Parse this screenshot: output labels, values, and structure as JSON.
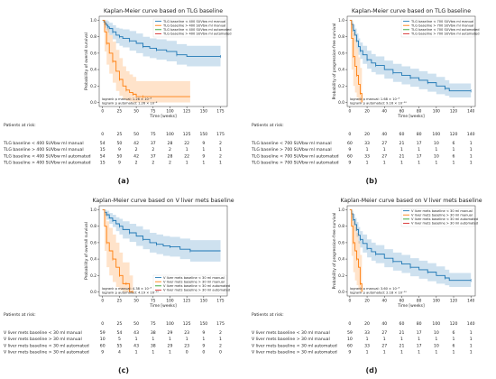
{
  "colors": {
    "blue": "#1f77b4",
    "orange": "#ff7f0e",
    "green": "#2ca02c",
    "red": "#d62728"
  },
  "risk_header": "Patients at risk:",
  "chart_data": [
    {
      "type": "line",
      "caption": "(a)",
      "title": "Kaplan-Meier curve based on TLG baseline",
      "xlabel": "Time [weeks]",
      "ylabel": "Probability of overall survival",
      "xticks": [
        0,
        25,
        50,
        75,
        100,
        125,
        150,
        175
      ],
      "yticks": [
        0.0,
        0.2,
        0.4,
        0.6,
        0.8,
        1.0
      ],
      "xlim": [
        -5,
        185
      ],
      "ylim": [
        -0.05,
        1.05
      ],
      "grid": false,
      "legend": "top-right",
      "pvalues": [
        "logrank p manual: 1.26 × 10⁻⁸",
        "logrank p automated: 1.26 × 10⁻⁸"
      ],
      "series": [
        {
          "name": "TLG baseline < 400 SUVbw ml manual",
          "color": "#1f77b4",
          "x": [
            0,
            2,
            4,
            6,
            8,
            10,
            15,
            20,
            25,
            30,
            40,
            50,
            60,
            70,
            80,
            95,
            110,
            125,
            175
          ],
          "y": [
            1.0,
            0.98,
            0.96,
            0.94,
            0.92,
            0.9,
            0.86,
            0.82,
            0.8,
            0.78,
            0.75,
            0.72,
            0.68,
            0.66,
            0.64,
            0.62,
            0.58,
            0.56,
            0.56
          ],
          "ci_low": [
            1.0,
            0.95,
            0.91,
            0.88,
            0.85,
            0.82,
            0.77,
            0.72,
            0.69,
            0.67,
            0.63,
            0.6,
            0.56,
            0.54,
            0.52,
            0.5,
            0.46,
            0.44,
            0.44
          ],
          "ci_high": [
            1.0,
            1.0,
            1.0,
            1.0,
            0.99,
            0.97,
            0.94,
            0.91,
            0.9,
            0.89,
            0.87,
            0.84,
            0.8,
            0.78,
            0.77,
            0.75,
            0.71,
            0.69,
            0.69
          ]
        },
        {
          "name": "TLG baseline > 400 SUVbw ml manual",
          "color": "#ff7f0e",
          "x": [
            0,
            3,
            6,
            10,
            15,
            20,
            25,
            30,
            35,
            40,
            45,
            50,
            60,
            130
          ],
          "y": [
            1.0,
            0.86,
            0.72,
            0.6,
            0.5,
            0.38,
            0.28,
            0.2,
            0.15,
            0.12,
            0.1,
            0.07,
            0.07,
            0.07
          ],
          "ci_low": [
            1.0,
            0.62,
            0.46,
            0.35,
            0.24,
            0.14,
            0.08,
            0.04,
            0.02,
            0.01,
            0.0,
            0.0,
            0.0,
            0.0
          ],
          "ci_high": [
            1.0,
            0.98,
            0.9,
            0.82,
            0.74,
            0.64,
            0.54,
            0.44,
            0.38,
            0.34,
            0.31,
            0.26,
            0.26,
            0.26
          ]
        },
        {
          "name": "TLG baseline < 400 SUVbw ml automated",
          "color": "#2ca02c"
        },
        {
          "name": "TLG baseline > 400 SUVbw ml automated",
          "color": "#d62728"
        }
      ],
      "risk_table": {
        "times": [
          "0",
          "25",
          "50",
          "75",
          "100",
          "125",
          "150",
          "175"
        ],
        "rows": [
          {
            "label": "TLG baseline < 400 SUVbw ml manual",
            "counts": [
              "54",
              "50",
              "42",
              "37",
              "28",
              "22",
              "9",
              "2"
            ]
          },
          {
            "label": "TLG baseline > 400 SUVbw ml manual",
            "counts": [
              "15",
              "9",
              "2",
              "2",
              "2",
              "1",
              "1",
              "1"
            ]
          },
          {
            "label": "TLG baseline < 400 SUVbw ml automated",
            "counts": [
              "54",
              "50",
              "42",
              "37",
              "28",
              "22",
              "9",
              "2"
            ]
          },
          {
            "label": "TLG baseline > 400 SUVbw ml automated",
            "counts": [
              "15",
              "9",
              "2",
              "2",
              "2",
              "1",
              "1",
              "1"
            ]
          }
        ]
      }
    },
    {
      "type": "line",
      "caption": "(b)",
      "title": "Kaplan-Meier curve based on TLG baseline",
      "xlabel": "Time [weeks]",
      "ylabel": "Probability of progression-free survival",
      "xticks": [
        0,
        20,
        40,
        60,
        80,
        100,
        120,
        140
      ],
      "yticks": [
        0.0,
        0.2,
        0.4,
        0.6,
        0.8,
        1.0
      ],
      "xlim": [
        -3,
        145
      ],
      "ylim": [
        -0.05,
        1.05
      ],
      "grid": false,
      "legend": "top-right",
      "pvalues": [
        "logrank p manual: 1.68 × 10⁻⁸",
        "logrank p automated: 9.16 × 10⁻¹⁰"
      ],
      "series": [
        {
          "name": "TLG baseline < 700 SUVbw ml manual",
          "color": "#1f77b4",
          "x": [
            0,
            2,
            4,
            6,
            8,
            10,
            12,
            15,
            20,
            25,
            30,
            40,
            50,
            60,
            70,
            80,
            90,
            100,
            110,
            115,
            140
          ],
          "y": [
            1.0,
            0.95,
            0.88,
            0.82,
            0.75,
            0.68,
            0.63,
            0.58,
            0.52,
            0.48,
            0.45,
            0.4,
            0.36,
            0.33,
            0.3,
            0.27,
            0.24,
            0.2,
            0.17,
            0.14,
            0.14
          ],
          "ci_low": [
            1.0,
            0.9,
            0.81,
            0.74,
            0.66,
            0.58,
            0.53,
            0.47,
            0.41,
            0.37,
            0.34,
            0.29,
            0.25,
            0.22,
            0.19,
            0.16,
            0.13,
            0.1,
            0.08,
            0.06,
            0.06
          ],
          "ci_high": [
            1.0,
            0.99,
            0.95,
            0.9,
            0.84,
            0.78,
            0.73,
            0.69,
            0.63,
            0.59,
            0.56,
            0.51,
            0.47,
            0.44,
            0.41,
            0.38,
            0.35,
            0.31,
            0.27,
            0.23,
            0.23
          ]
        },
        {
          "name": "TLG baseline > 700 SUVbw ml manual",
          "color": "#ff7f0e",
          "x": [
            0,
            2,
            4,
            6,
            8,
            10,
            12,
            14
          ],
          "y": [
            1.0,
            0.78,
            0.56,
            0.44,
            0.33,
            0.22,
            0.11,
            0.0
          ],
          "ci_low": [
            1.0,
            0.4,
            0.2,
            0.12,
            0.06,
            0.02,
            0.0,
            0.0
          ],
          "ci_high": [
            1.0,
            0.96,
            0.85,
            0.76,
            0.66,
            0.55,
            0.42,
            0.42
          ]
        },
        {
          "name": "TLG baseline < 700 SUVbw ml automated",
          "color": "#2ca02c"
        },
        {
          "name": "TLG baseline > 700 SUVbw ml automated",
          "color": "#d62728"
        }
      ],
      "risk_table": {
        "times": [
          "0",
          "20",
          "40",
          "60",
          "80",
          "100",
          "120",
          "140"
        ],
        "rows": [
          {
            "label": "TLG baseline < 700 SUVbw ml manual",
            "counts": [
              "60",
              "33",
              "27",
              "21",
              "17",
              "10",
              "6",
              "1"
            ]
          },
          {
            "label": "TLG baseline > 700 SUVbw ml manual",
            "counts": [
              "9",
              "1",
              "1",
              "1",
              "1",
              "1",
              "1",
              "1"
            ]
          },
          {
            "label": "TLG baseline < 700 SUVbw ml automated",
            "counts": [
              "60",
              "33",
              "27",
              "21",
              "17",
              "10",
              "6",
              "1"
            ]
          },
          {
            "label": "TLG baseline > 700 SUVbw ml automated",
            "counts": [
              "9",
              "1",
              "1",
              "1",
              "1",
              "1",
              "1",
              "1"
            ]
          }
        ]
      }
    },
    {
      "type": "line",
      "caption": "(c)",
      "title": "Kaplan-Meier curve based on V liver mets baseline",
      "xlabel": "Time [weeks]",
      "ylabel": "Probability of overall survival",
      "xticks": [
        0,
        25,
        50,
        75,
        100,
        125,
        150,
        175
      ],
      "yticks": [
        0.0,
        0.2,
        0.4,
        0.6,
        0.8,
        1.0
      ],
      "xlim": [
        -5,
        185
      ],
      "ylim": [
        -0.05,
        1.05
      ],
      "grid": false,
      "legend": "bottom-right",
      "pvalues": [
        "logrank p manual: 4.38 × 10⁻⁸",
        "logrank p automated: 4.19 × 10⁻¹²"
      ],
      "series": [
        {
          "name": "V liver mets baseline < 30 ml manual",
          "color": "#1f77b4",
          "x": [
            0,
            3,
            6,
            10,
            15,
            20,
            25,
            30,
            40,
            50,
            60,
            70,
            80,
            90,
            100,
            115,
            130,
            175
          ],
          "y": [
            1.0,
            0.97,
            0.94,
            0.9,
            0.87,
            0.83,
            0.8,
            0.76,
            0.72,
            0.68,
            0.64,
            0.6,
            0.58,
            0.56,
            0.55,
            0.52,
            0.5,
            0.5
          ],
          "ci_low": [
            1.0,
            0.93,
            0.88,
            0.83,
            0.79,
            0.74,
            0.7,
            0.65,
            0.61,
            0.56,
            0.52,
            0.48,
            0.46,
            0.44,
            0.43,
            0.4,
            0.37,
            0.37
          ],
          "ci_high": [
            1.0,
            1.0,
            0.99,
            0.96,
            0.94,
            0.91,
            0.89,
            0.86,
            0.83,
            0.8,
            0.76,
            0.72,
            0.7,
            0.68,
            0.67,
            0.65,
            0.63,
            0.63
          ]
        },
        {
          "name": "V liver mets baseline > 30 ml manual",
          "color": "#ff7f0e",
          "x": [
            0,
            3,
            6,
            10,
            15,
            20,
            25,
            30,
            35,
            40,
            45
          ],
          "y": [
            1.0,
            0.8,
            0.6,
            0.5,
            0.4,
            0.3,
            0.2,
            0.1,
            0.1,
            0.0,
            0.0
          ],
          "ci_low": [
            1.0,
            0.5,
            0.3,
            0.2,
            0.12,
            0.06,
            0.02,
            0.0,
            0.0,
            0.0,
            0.0
          ],
          "ci_high": [
            1.0,
            0.96,
            0.86,
            0.78,
            0.7,
            0.6,
            0.48,
            0.36,
            0.36,
            0.2,
            0.2
          ]
        },
        {
          "name": "V liver mets baseline < 30 ml automated",
          "color": "#2ca02c"
        },
        {
          "name": "V liver mets baseline > 30 ml automated",
          "color": "#d62728"
        }
      ],
      "risk_table": {
        "times": [
          "0",
          "25",
          "50",
          "75",
          "100",
          "125",
          "150",
          "175"
        ],
        "rows": [
          {
            "label": "V liver mets baseline < 30 ml manual",
            "counts": [
              "59",
              "54",
              "43",
              "38",
              "29",
              "23",
              "9",
              "2"
            ]
          },
          {
            "label": "V liver mets baseline > 30 ml manual",
            "counts": [
              "10",
              "5",
              "1",
              "1",
              "1",
              "1",
              "1",
              "1"
            ]
          },
          {
            "label": "V liver mets baseline < 30 ml automated",
            "counts": [
              "60",
              "55",
              "43",
              "38",
              "29",
              "23",
              "9",
              "2"
            ]
          },
          {
            "label": "V liver mets baseline > 30 ml automated",
            "counts": [
              "9",
              "4",
              "1",
              "1",
              "1",
              "0",
              "0",
              "0"
            ]
          }
        ]
      }
    },
    {
      "type": "line",
      "caption": "(d)",
      "title": "Kaplan-Meier curve based on V liver mets baseline",
      "xlabel": "Time [weeks]",
      "ylabel": "Probability of progression-free survival",
      "xticks": [
        0,
        20,
        40,
        60,
        80,
        100,
        120,
        140
      ],
      "yticks": [
        0.0,
        0.2,
        0.4,
        0.6,
        0.8,
        1.0
      ],
      "xlim": [
        -3,
        145
      ],
      "ylim": [
        -0.05,
        1.05
      ],
      "grid": false,
      "legend": "top-right",
      "pvalues": [
        "logrank p manual: 3.60 × 10⁻⁸",
        "logrank p automated: 2.18 × 10⁻¹⁰"
      ],
      "series": [
        {
          "name": "V liver mets baseline < 30 ml manual",
          "color": "#1f77b4",
          "x": [
            0,
            2,
            4,
            6,
            8,
            10,
            12,
            15,
            20,
            25,
            30,
            40,
            50,
            60,
            70,
            80,
            90,
            100,
            110,
            115,
            140
          ],
          "y": [
            1.0,
            0.95,
            0.88,
            0.82,
            0.76,
            0.69,
            0.64,
            0.59,
            0.53,
            0.49,
            0.46,
            0.41,
            0.37,
            0.34,
            0.3,
            0.27,
            0.24,
            0.2,
            0.17,
            0.14,
            0.14
          ],
          "ci_low": [
            1.0,
            0.9,
            0.81,
            0.74,
            0.67,
            0.59,
            0.54,
            0.48,
            0.42,
            0.38,
            0.35,
            0.3,
            0.26,
            0.23,
            0.19,
            0.16,
            0.13,
            0.1,
            0.08,
            0.06,
            0.06
          ],
          "ci_high": [
            1.0,
            0.99,
            0.95,
            0.9,
            0.85,
            0.79,
            0.74,
            0.7,
            0.64,
            0.6,
            0.57,
            0.52,
            0.48,
            0.45,
            0.41,
            0.38,
            0.35,
            0.31,
            0.27,
            0.23,
            0.23
          ]
        },
        {
          "name": "V liver mets baseline > 30 ml manual",
          "color": "#ff7f0e",
          "x": [
            0,
            2,
            4,
            6,
            8,
            10,
            12,
            14
          ],
          "y": [
            1.0,
            0.8,
            0.6,
            0.5,
            0.4,
            0.3,
            0.1,
            0.0
          ],
          "ci_low": [
            1.0,
            0.44,
            0.24,
            0.14,
            0.08,
            0.03,
            0.0,
            0.0
          ],
          "ci_high": [
            1.0,
            0.96,
            0.86,
            0.8,
            0.72,
            0.62,
            0.45,
            0.45
          ]
        },
        {
          "name": "V liver mets baseline < 30 ml automated",
          "color": "#2ca02c"
        },
        {
          "name": "V liver mets baseline > 30 ml automated",
          "color": "#d62728"
        }
      ],
      "risk_table": {
        "times": [
          "0",
          "20",
          "40",
          "60",
          "80",
          "100",
          "120",
          "140"
        ],
        "rows": [
          {
            "label": "V liver mets baseline < 30 ml manual",
            "counts": [
              "59",
              "33",
              "27",
              "21",
              "17",
              "10",
              "6",
              "1"
            ]
          },
          {
            "label": "V liver mets baseline > 30 ml manual",
            "counts": [
              "10",
              "1",
              "1",
              "1",
              "1",
              "1",
              "1",
              "1"
            ]
          },
          {
            "label": "V liver mets baseline < 30 ml automated",
            "counts": [
              "60",
              "33",
              "27",
              "21",
              "17",
              "10",
              "6",
              "1"
            ]
          },
          {
            "label": "V liver mets baseline > 30 ml automated",
            "counts": [
              "9",
              "1",
              "1",
              "1",
              "1",
              "1",
              "1",
              "1"
            ]
          }
        ]
      }
    }
  ]
}
